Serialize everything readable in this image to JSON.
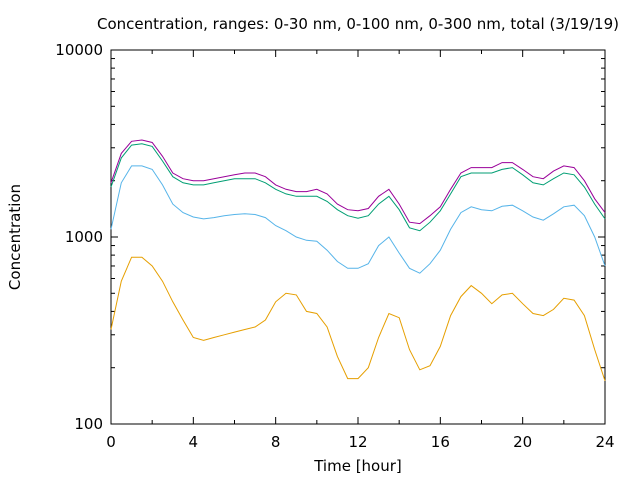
{
  "chart_data": {
    "type": "line",
    "title": "Concentration, ranges: 0-30 nm, 0-100 nm, 0-300 nm, total (3/19/19)",
    "xlabel": "Time [hour]",
    "ylabel": "Concentration",
    "xlim": [
      0,
      24
    ],
    "ylim": [
      100,
      10000
    ],
    "yscale": "log",
    "x_ticks": [
      0,
      4,
      8,
      12,
      16,
      20,
      24
    ],
    "x_tick_labels": [
      "0",
      "4",
      "8",
      "12",
      "16",
      "20",
      "24"
    ],
    "y_ticks": [
      100,
      1000,
      10000
    ],
    "y_tick_labels": [
      "100",
      "1000",
      "10000"
    ],
    "grid": false,
    "legend": "none",
    "x": [
      0,
      0.5,
      1,
      1.5,
      2,
      2.5,
      3,
      3.5,
      4,
      4.5,
      5,
      5.5,
      6,
      6.5,
      7,
      7.5,
      8,
      8.5,
      9,
      9.5,
      10,
      10.5,
      11,
      11.5,
      12,
      12.5,
      13,
      13.5,
      14,
      14.5,
      15,
      15.5,
      16,
      16.5,
      17,
      17.5,
      18,
      18.5,
      19,
      19.5,
      20,
      20.5,
      21,
      21.5,
      22,
      22.5,
      23,
      23.5,
      24
    ],
    "series": [
      {
        "color": "#990099",
        "values": [
          1950,
          2800,
          3250,
          3300,
          3200,
          2700,
          2200,
          2050,
          2000,
          2000,
          2050,
          2100,
          2150,
          2200,
          2200,
          2100,
          1900,
          1800,
          1750,
          1750,
          1800,
          1700,
          1500,
          1400,
          1380,
          1420,
          1650,
          1800,
          1500,
          1200,
          1180,
          1300,
          1450,
          1800,
          2200,
          2350,
          2350,
          2350,
          2500,
          2500,
          2300,
          2100,
          2050,
          2250,
          2400,
          2350,
          2000,
          1600,
          1350
        ]
      },
      {
        "color": "#009e73",
        "values": [
          1850,
          2650,
          3100,
          3150,
          3050,
          2550,
          2100,
          1950,
          1900,
          1900,
          1950,
          2000,
          2050,
          2050,
          2050,
          1950,
          1800,
          1700,
          1650,
          1650,
          1650,
          1550,
          1400,
          1300,
          1260,
          1300,
          1500,
          1650,
          1400,
          1120,
          1080,
          1200,
          1380,
          1700,
          2100,
          2200,
          2200,
          2200,
          2300,
          2350,
          2150,
          1950,
          1900,
          2050,
          2200,
          2150,
          1850,
          1500,
          1250
        ]
      },
      {
        "color": "#56b4e9",
        "values": [
          1100,
          1950,
          2400,
          2400,
          2300,
          1900,
          1500,
          1350,
          1280,
          1250,
          1270,
          1300,
          1320,
          1330,
          1320,
          1270,
          1150,
          1080,
          1000,
          960,
          950,
          850,
          740,
          680,
          680,
          720,
          900,
          1000,
          820,
          680,
          640,
          720,
          850,
          1100,
          1350,
          1450,
          1400,
          1380,
          1460,
          1480,
          1380,
          1280,
          1230,
          1330,
          1450,
          1480,
          1300,
          1000,
          700
        ]
      },
      {
        "color": "#e69f00",
        "values": [
          320,
          580,
          780,
          780,
          700,
          580,
          450,
          360,
          290,
          280,
          290,
          300,
          310,
          320,
          330,
          360,
          450,
          500,
          490,
          400,
          390,
          330,
          230,
          175,
          175,
          200,
          290,
          390,
          370,
          250,
          195,
          205,
          260,
          380,
          480,
          550,
          500,
          440,
          490,
          500,
          440,
          390,
          380,
          410,
          470,
          460,
          380,
          250,
          170
        ]
      }
    ]
  }
}
